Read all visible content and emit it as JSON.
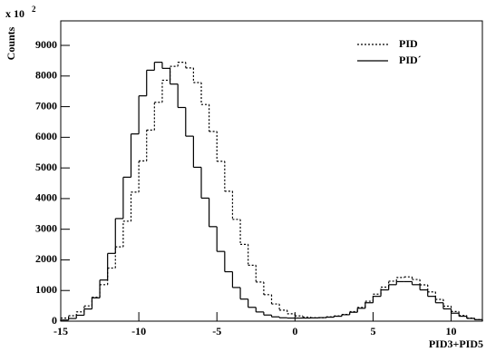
{
  "chart_data": {
    "type": "histogram",
    "ylabel": "Counts",
    "xlabel": "PID3+PID5",
    "y_multiplier": "x 10",
    "y_multiplier_exponent": "2",
    "bins": [
      -15,
      -14.5,
      -14,
      -13.5,
      -13,
      -12.5,
      -12,
      -11.5,
      -11,
      -10.5,
      -10,
      -9.5,
      -9,
      -8.5,
      -8,
      -7.5,
      -7,
      -6.5,
      -6,
      -5.5,
      -5,
      -4.5,
      -4,
      -3.5,
      -3,
      -2.5,
      -2,
      -1.5,
      -1,
      -0.5,
      0,
      0.5,
      1,
      1.5,
      2,
      2.5,
      3,
      3.5,
      4,
      4.5,
      5,
      5.5,
      6,
      6.5,
      7,
      7.5,
      8,
      8.5,
      9,
      9.5,
      10,
      10.5,
      11,
      11.5,
      12
    ],
    "series": [
      {
        "name": "PID",
        "color": "#000000",
        "style": "dashed",
        "values": [
          100,
          178,
          303,
          498,
          783,
          1190,
          1734,
          2423,
          3262,
          4212,
          5229,
          6235,
          7143,
          7863,
          8316,
          8450,
          8264,
          7787,
          7070,
          6191,
          5218,
          4242,
          3321,
          2506,
          1824,
          1276,
          864,
          560,
          360,
          240,
          170,
          130,
          110,
          110,
          140,
          170,
          220,
          310,
          450,
          650,
          880,
          1110,
          1305,
          1425,
          1445,
          1360,
          1185,
          955,
          710,
          490,
          315,
          185,
          100,
          50
        ]
      },
      {
        "name": "PID´",
        "color": "#000000",
        "style": "solid",
        "values": [
          36,
          87,
          193,
          397,
          760,
          1343,
          2211,
          3348,
          4698,
          6110,
          7353,
          8190,
          8450,
          8250,
          7737,
          6973,
          6037,
          5022,
          4016,
          3084,
          2275,
          1613,
          1098,
          720,
          451,
          300,
          200,
          140,
          110,
          100,
          100,
          100,
          105,
          115,
          130,
          160,
          210,
          290,
          420,
          600,
          810,
          1020,
          1190,
          1290,
          1290,
          1190,
          1020,
          810,
          600,
          400,
          260,
          160,
          90,
          50
        ]
      }
    ],
    "xlim": [
      -15,
      12
    ],
    "xticks": [
      -15,
      -10,
      -5,
      0,
      5,
      10
    ],
    "ylim": [
      0,
      9800
    ],
    "yticks": [
      0,
      1000,
      2000,
      3000,
      4000,
      5000,
      6000,
      7000,
      8000,
      9000
    ],
    "legend": "top-right",
    "grid": false
  }
}
